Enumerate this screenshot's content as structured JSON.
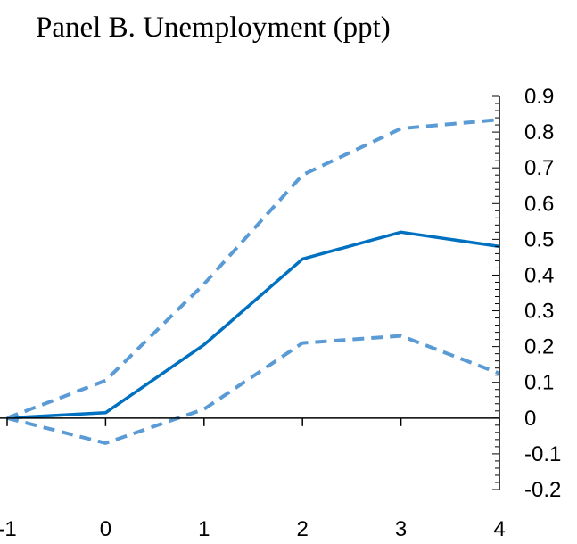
{
  "chart_data": {
    "type": "line",
    "title": "Panel B. Unemployment (ppt)",
    "xlabel": "",
    "ylabel": "",
    "x": [
      -1,
      0,
      1,
      2,
      3,
      4
    ],
    "x_tick_labels": [
      "-1",
      "0",
      "1",
      "2",
      "3",
      "4"
    ],
    "y_tick_labels": [
      "0.9",
      "0.8",
      "0.7",
      "0.6",
      "0.5",
      "0.4",
      "0.3",
      "0.2",
      "0.1",
      "0",
      "-0.1",
      "-0.2"
    ],
    "ylim": [
      -0.2,
      0.9
    ],
    "xlim": [
      -1,
      4
    ],
    "y_axis_position": "right",
    "grid": false,
    "legend": "none",
    "series": [
      {
        "key": "estimate",
        "style": "solid",
        "color": "#0070C0",
        "values": [
          0.0,
          0.015,
          0.205,
          0.445,
          0.52,
          0.48
        ]
      },
      {
        "key": "upper_bound",
        "style": "dashed",
        "color": "#5B9BD5",
        "values": [
          0.0,
          0.105,
          0.375,
          0.68,
          0.81,
          0.835
        ]
      },
      {
        "key": "lower_bound",
        "style": "dashed",
        "color": "#5B9BD5",
        "values": [
          0.0,
          -0.07,
          0.025,
          0.21,
          0.23,
          0.125
        ]
      }
    ]
  }
}
